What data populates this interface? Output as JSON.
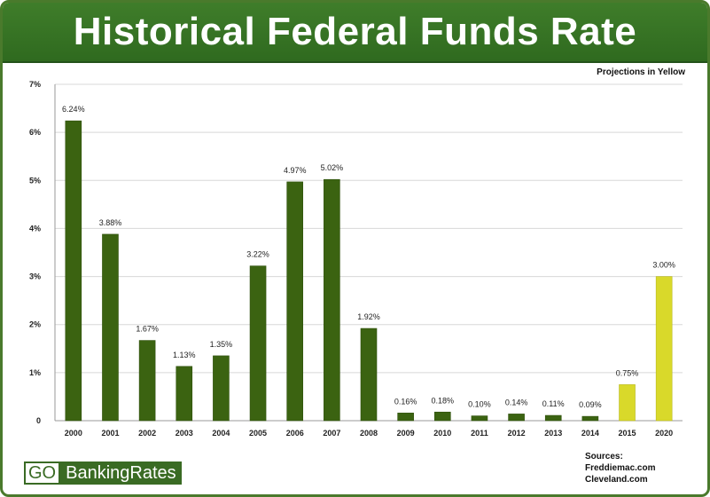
{
  "header": {
    "title": "Historical Federal Funds Rate"
  },
  "note": "Projections in Yellow",
  "footer": {
    "logo_go": "GO",
    "logo_rest": "BankingRates",
    "sources_label": "Sources:",
    "sources": [
      "Freddiemac.com",
      "Cleveland.com"
    ]
  },
  "colors": {
    "historical": "#3b6311",
    "projection": "#d9d92a",
    "title_bar": "#367426",
    "grid": "#d8d8d8"
  },
  "chart_data": {
    "type": "bar",
    "title": "Historical Federal Funds Rate",
    "xlabel": "",
    "ylabel": "",
    "ylim": [
      0,
      7
    ],
    "yticks": [
      "0",
      "1%",
      "2%",
      "3%",
      "4%",
      "5%",
      "6%",
      "7%"
    ],
    "grid": true,
    "categories": [
      "2000",
      "2001",
      "2002",
      "2003",
      "2004",
      "2005",
      "2006",
      "2007",
      "2008",
      "2009",
      "2010",
      "2011",
      "2012",
      "2013",
      "2014",
      "2015",
      "2020"
    ],
    "values": [
      6.24,
      3.88,
      1.67,
      1.13,
      1.35,
      3.22,
      4.97,
      5.02,
      1.92,
      0.16,
      0.18,
      0.1,
      0.14,
      0.11,
      0.09,
      0.75,
      3.0
    ],
    "labels": [
      "6.24%",
      "3.88%",
      "1.67%",
      "1.13%",
      "1.35%",
      "3.22%",
      "4.97%",
      "5.02%",
      "1.92%",
      "0.16%",
      "0.18%",
      "0.10%",
      "0.14%",
      "0.11%",
      "0.09%",
      "0.75%",
      "3.00%"
    ],
    "projection": [
      false,
      false,
      false,
      false,
      false,
      false,
      false,
      false,
      false,
      false,
      false,
      false,
      false,
      false,
      false,
      true,
      true
    ]
  }
}
